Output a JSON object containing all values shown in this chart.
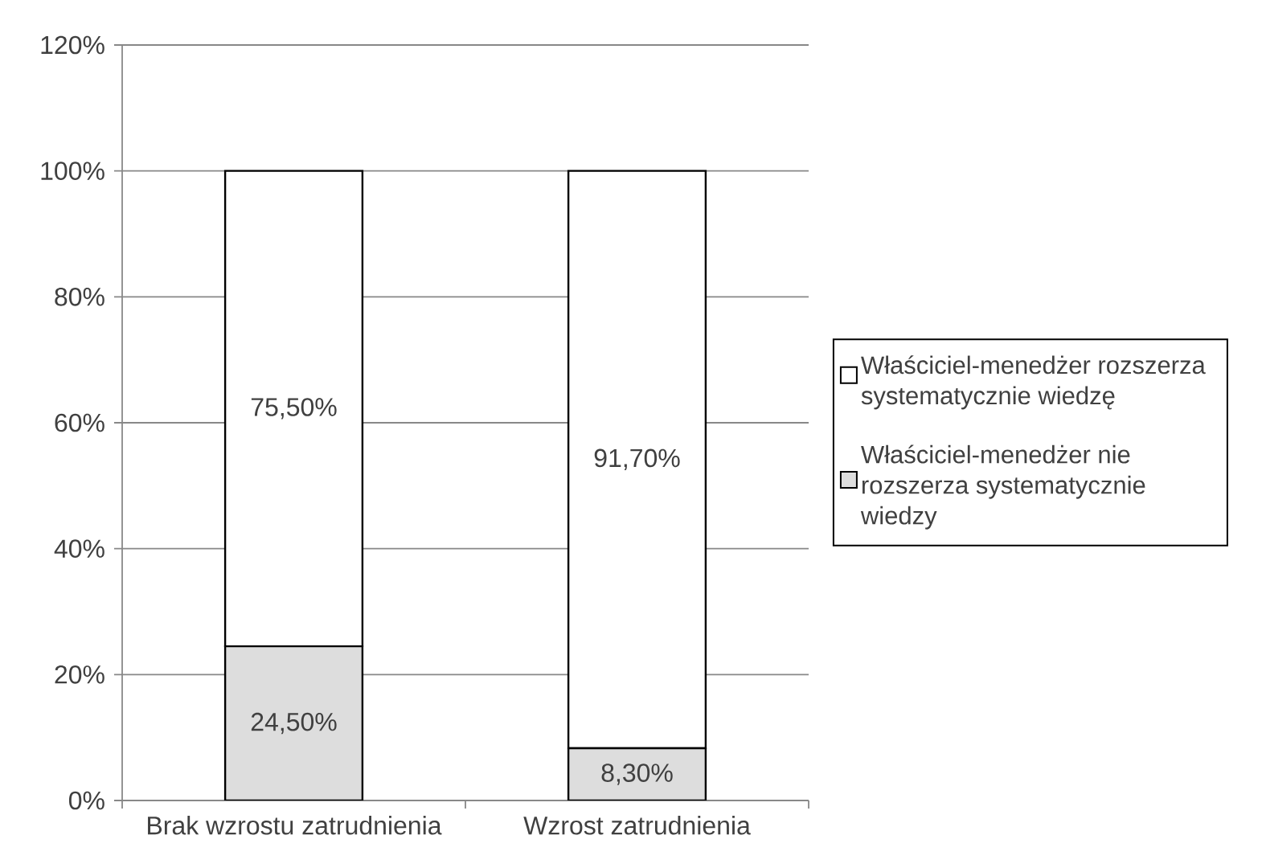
{
  "chart_data": {
    "type": "bar",
    "stacked": true,
    "categories": [
      "Brak wzrostu zatrudnienia",
      "Wzrost zatrudnienia"
    ],
    "series": [
      {
        "name": "Właściciel-menedżer nie rozszerza systematycznie wiedzy",
        "color": "#dddddd",
        "values": [
          24.5,
          8.3
        ],
        "value_labels": [
          "24,50%",
          "8,30%"
        ]
      },
      {
        "name": "Właściciel-menedżer rozszerza systematycznie wiedzę",
        "color": "#ffffff",
        "values": [
          75.5,
          91.7
        ],
        "value_labels": [
          "75,50%",
          "91,70%"
        ]
      }
    ],
    "ylim": [
      0,
      120
    ],
    "yticks": [
      {
        "value": 0,
        "label": "0%"
      },
      {
        "value": 20,
        "label": "20%"
      },
      {
        "value": 40,
        "label": "40%"
      },
      {
        "value": 60,
        "label": "60%"
      },
      {
        "value": 80,
        "label": "80%"
      },
      {
        "value": 100,
        "label": "100%"
      },
      {
        "value": 120,
        "label": "120%"
      }
    ],
    "grid": "y",
    "legend": "right"
  }
}
